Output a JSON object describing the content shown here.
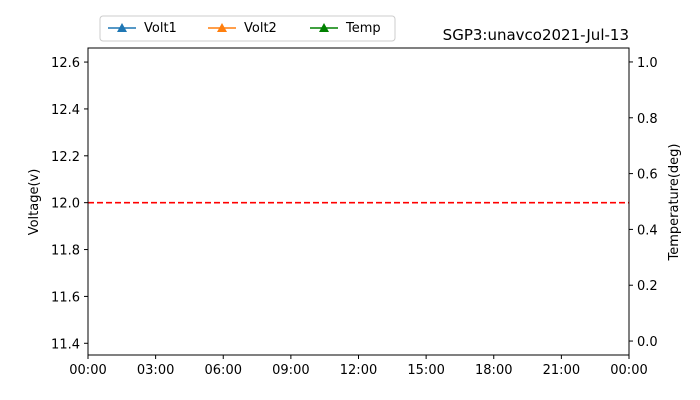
{
  "chart_data": {
    "type": "line",
    "title": "SGP3:unavco2021-Jul-13",
    "ylabel_left": "Voltage(v)",
    "ylabel_right": "Temperature(deg)",
    "x_ticks": [
      "00:00",
      "03:00",
      "06:00",
      "09:00",
      "12:00",
      "15:00",
      "18:00",
      "21:00",
      "00:00"
    ],
    "x_range_hours": [
      0,
      24
    ],
    "y_left": {
      "range": [
        11.35,
        12.66
      ],
      "ticks": [
        11.4,
        11.6,
        11.8,
        12.0,
        12.2,
        12.4,
        12.6
      ],
      "tick_labels": [
        "11.4",
        "11.6",
        "11.8",
        "12.0",
        "12.2",
        "12.4",
        "12.6"
      ]
    },
    "y_right": {
      "range": [
        -0.05,
        1.05
      ],
      "ticks": [
        0.0,
        0.2,
        0.4,
        0.6,
        0.8,
        1.0
      ],
      "tick_labels": [
        "0.0",
        "0.2",
        "0.4",
        "0.6",
        "0.8",
        "1.0"
      ]
    },
    "legend_position": "top-left above plot",
    "series": [
      {
        "name": "Volt1",
        "color": "#1f77b4",
        "marker": "triangle",
        "values": []
      },
      {
        "name": "Volt2",
        "color": "#ff7f0e",
        "marker": "triangle",
        "values": []
      },
      {
        "name": "Temp",
        "color": "#008000",
        "marker": "triangle",
        "values": []
      }
    ],
    "reference_line": {
      "y": 12.0,
      "axis": "left",
      "color": "#ff0000",
      "style": "dashed"
    },
    "grid": false
  }
}
